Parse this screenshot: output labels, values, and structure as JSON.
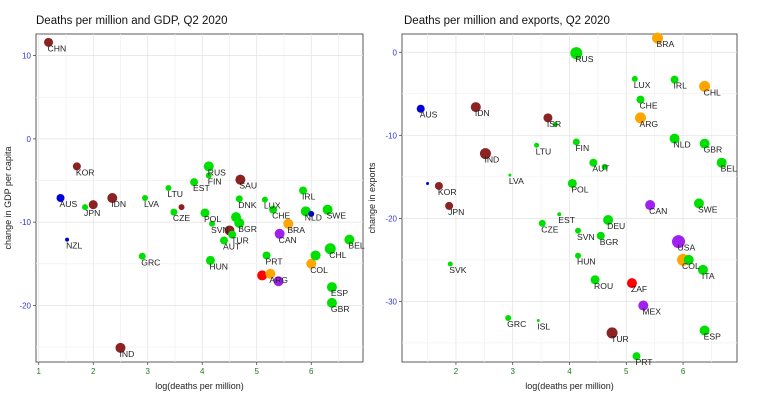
{
  "chart_data": [
    {
      "type": "scatter",
      "title": "Deaths per million and GDP, Q2 2020",
      "xlabel": "log(deaths per million)",
      "ylabel": "change in GDP per capita",
      "xlim": [
        0.95,
        6.95
      ],
      "ylim": [
        -26.8,
        12.6
      ],
      "x_ticks": [
        1,
        2,
        3,
        4,
        5,
        6
      ],
      "y_ticks": [
        10,
        0,
        -10,
        -20
      ],
      "grid": true,
      "colors": {
        "green": "#00e000",
        "darkred": "#8b2323",
        "blue": "#0000dd",
        "orange": "#ffa500",
        "red": "#ff0000",
        "purple": "#a020f0"
      },
      "points": [
        {
          "label": "CHN",
          "x": 1.18,
          "y": 11.6,
          "color": "darkred",
          "size": 4.5
        },
        {
          "label": "KOR",
          "x": 1.7,
          "y": -3.3,
          "color": "darkred",
          "size": 4
        },
        {
          "label": "AUS",
          "x": 1.4,
          "y": -7.1,
          "color": "blue",
          "size": 4
        },
        {
          "label": "JPN",
          "x": 1.85,
          "y": -8.2,
          "color": "green",
          "size": 3
        },
        {
          "label": "",
          "x": 2.0,
          "y": -7.9,
          "color": "darkred",
          "size": 4.5
        },
        {
          "label": "IDN",
          "x": 2.35,
          "y": -7.1,
          "color": "darkred",
          "size": 5
        },
        {
          "label": "LVA",
          "x": 2.95,
          "y": -7.1,
          "color": "green",
          "size": 3
        },
        {
          "label": "NZL",
          "x": 1.52,
          "y": -12.1,
          "color": "blue",
          "size": 2
        },
        {
          "label": "GRC",
          "x": 2.9,
          "y": -14.1,
          "color": "green",
          "size": 3.5
        },
        {
          "label": "IND",
          "x": 2.5,
          "y": -25.1,
          "color": "darkred",
          "size": 5
        },
        {
          "label": "LTU",
          "x": 3.38,
          "y": -5.9,
          "color": "green",
          "size": 3
        },
        {
          "label": "CZE",
          "x": 3.48,
          "y": -8.8,
          "color": "green",
          "size": 3.5
        },
        {
          "label": "",
          "x": 3.62,
          "y": -8.2,
          "color": "darkred",
          "size": 3
        },
        {
          "label": "EST",
          "x": 3.85,
          "y": -5.2,
          "color": "green",
          "size": 4
        },
        {
          "label": "RUS",
          "x": 4.12,
          "y": -3.3,
          "color": "green",
          "size": 5
        },
        {
          "label": "FIN",
          "x": 4.12,
          "y": -4.4,
          "color": "green",
          "size": 3
        },
        {
          "label": "POL",
          "x": 4.05,
          "y": -8.9,
          "color": "green",
          "size": 4.5
        },
        {
          "label": "HUN",
          "x": 4.15,
          "y": -14.6,
          "color": "green",
          "size": 4.5
        },
        {
          "label": "SVN",
          "x": 4.18,
          "y": -10.2,
          "color": "green",
          "size": 3
        },
        {
          "label": "",
          "x": 4.5,
          "y": -11.0,
          "color": "darkred",
          "size": 5
        },
        {
          "label": "BGR",
          "x": 4.68,
          "y": -10.1,
          "color": "green",
          "size": 5
        },
        {
          "label": "",
          "x": 4.62,
          "y": -9.4,
          "color": "green",
          "size": 5
        },
        {
          "label": "TUR",
          "x": 4.55,
          "y": -11.5,
          "color": "green",
          "size": 4
        },
        {
          "label": "AUT",
          "x": 4.4,
          "y": -12.2,
          "color": "green",
          "size": 4
        },
        {
          "label": "DNK",
          "x": 4.68,
          "y": -7.2,
          "color": "green",
          "size": 3.5
        },
        {
          "label": "SAU",
          "x": 4.7,
          "y": -4.9,
          "color": "darkred",
          "size": 5
        },
        {
          "label": "LUX",
          "x": 5.15,
          "y": -7.3,
          "color": "green",
          "size": 3
        },
        {
          "label": "CHE",
          "x": 5.3,
          "y": -8.5,
          "color": "green",
          "size": 4
        },
        {
          "label": "CAN",
          "x": 5.42,
          "y": -11.4,
          "color": "purple",
          "size": 5
        },
        {
          "label": "BRA",
          "x": 5.58,
          "y": -10.2,
          "color": "orange",
          "size": 5
        },
        {
          "label": "NLD",
          "x": 5.9,
          "y": -8.7,
          "color": "green",
          "size": 5
        },
        {
          "label": "",
          "x": 6.0,
          "y": -9.0,
          "color": "blue",
          "size": 3
        },
        {
          "label": "IRL",
          "x": 5.85,
          "y": -6.2,
          "color": "green",
          "size": 4
        },
        {
          "label": "SWE",
          "x": 6.3,
          "y": -8.5,
          "color": "green",
          "size": 5
        },
        {
          "label": "PRT",
          "x": 5.18,
          "y": -14.0,
          "color": "green",
          "size": 4
        },
        {
          "label": "",
          "x": 5.1,
          "y": -16.4,
          "color": "red",
          "size": 5
        },
        {
          "label": "ARG",
          "x": 5.25,
          "y": -16.2,
          "color": "orange",
          "size": 5
        },
        {
          "label": "",
          "x": 5.4,
          "y": -17.1,
          "color": "purple",
          "size": 5
        },
        {
          "label": "COL",
          "x": 6.0,
          "y": -15.0,
          "color": "orange",
          "size": 5
        },
        {
          "label": "",
          "x": 6.08,
          "y": -14.0,
          "color": "green",
          "size": 5
        },
        {
          "label": "CHL",
          "x": 6.35,
          "y": -13.2,
          "color": "green",
          "size": 5.5
        },
        {
          "label": "BEL",
          "x": 6.7,
          "y": -12.1,
          "color": "green",
          "size": 5
        },
        {
          "label": "ESP",
          "x": 6.38,
          "y": -17.8,
          "color": "green",
          "size": 5
        },
        {
          "label": "GBR",
          "x": 6.38,
          "y": -19.7,
          "color": "green",
          "size": 5
        }
      ]
    },
    {
      "type": "scatter",
      "title": "Deaths per million and exports, Q2 2020",
      "xlabel": "log(deaths per million)",
      "ylabel": "change in exports",
      "xlim": [
        1.05,
        6.95
      ],
      "ylim": [
        -37.3,
        2.2
      ],
      "x_ticks": [
        2,
        3,
        4,
        5,
        6
      ],
      "y_ticks": [
        0,
        -10,
        -20,
        -30
      ],
      "grid": true,
      "colors": {
        "green": "#00e000",
        "darkred": "#8b2323",
        "blue": "#0000dd",
        "orange": "#ffa500",
        "red": "#ff0000",
        "purple": "#a020f0"
      },
      "points": [
        {
          "label": "AUS",
          "x": 1.38,
          "y": -6.8,
          "color": "blue",
          "size": 4
        },
        {
          "label": "",
          "x": 1.5,
          "y": -15.8,
          "color": "blue",
          "size": 1.5
        },
        {
          "label": "KOR",
          "x": 1.7,
          "y": -16.1,
          "color": "darkred",
          "size": 4
        },
        {
          "label": "JPN",
          "x": 1.88,
          "y": -18.5,
          "color": "darkred",
          "size": 4
        },
        {
          "label": "SVK",
          "x": 1.9,
          "y": -25.5,
          "color": "green",
          "size": 2.5
        },
        {
          "label": "IDN",
          "x": 2.35,
          "y": -6.6,
          "color": "darkred",
          "size": 5
        },
        {
          "label": "IND",
          "x": 2.52,
          "y": -12.2,
          "color": "darkred",
          "size": 5.5
        },
        {
          "label": "LVA",
          "x": 2.95,
          "y": -14.8,
          "color": "green",
          "size": 1.5
        },
        {
          "label": "LTU",
          "x": 3.42,
          "y": -11.2,
          "color": "green",
          "size": 2.5
        },
        {
          "label": "GRC",
          "x": 2.92,
          "y": -32.0,
          "color": "green",
          "size": 3
        },
        {
          "label": "ISL",
          "x": 3.45,
          "y": -32.3,
          "color": "green",
          "size": 1.5
        },
        {
          "label": "ISR",
          "x": 3.62,
          "y": -7.9,
          "color": "darkred",
          "size": 4.5
        },
        {
          "label": "",
          "x": 3.75,
          "y": -8.7,
          "color": "green",
          "size": 2.5
        },
        {
          "label": "CZE",
          "x": 3.52,
          "y": -20.6,
          "color": "green",
          "size": 3.5
        },
        {
          "label": "EST",
          "x": 3.82,
          "y": -19.5,
          "color": "green",
          "size": 2
        },
        {
          "label": "RUS",
          "x": 4.12,
          "y": -0.1,
          "color": "green",
          "size": 6
        },
        {
          "label": "FIN",
          "x": 4.12,
          "y": -10.8,
          "color": "green",
          "size": 3.5
        },
        {
          "label": "POL",
          "x": 4.05,
          "y": -15.8,
          "color": "green",
          "size": 4.5
        },
        {
          "label": "SVN",
          "x": 4.15,
          "y": -21.5,
          "color": "green",
          "size": 3
        },
        {
          "label": "HUN",
          "x": 4.15,
          "y": -24.5,
          "color": "green",
          "size": 3
        },
        {
          "label": "AUT",
          "x": 4.42,
          "y": -13.3,
          "color": "green",
          "size": 4
        },
        {
          "label": "",
          "x": 4.62,
          "y": -13.8,
          "color": "green",
          "size": 3
        },
        {
          "label": "BGR",
          "x": 4.55,
          "y": -22.1,
          "color": "green",
          "size": 4
        },
        {
          "label": "DEU",
          "x": 4.68,
          "y": -20.2,
          "color": "green",
          "size": 5
        },
        {
          "label": "ROU",
          "x": 4.45,
          "y": -27.4,
          "color": "green",
          "size": 4.5
        },
        {
          "label": "TUR",
          "x": 4.75,
          "y": -33.8,
          "color": "darkred",
          "size": 5.5
        },
        {
          "label": "ZAF",
          "x": 5.1,
          "y": -27.8,
          "color": "red",
          "size": 5
        },
        {
          "label": "MEX",
          "x": 5.3,
          "y": -30.5,
          "color": "purple",
          "size": 5
        },
        {
          "label": "PRT",
          "x": 5.18,
          "y": -36.6,
          "color": "green",
          "size": 4
        },
        {
          "label": "LUX",
          "x": 5.15,
          "y": -3.2,
          "color": "green",
          "size": 3
        },
        {
          "label": "CHE",
          "x": 5.25,
          "y": -5.7,
          "color": "green",
          "size": 4
        },
        {
          "label": "ARG",
          "x": 5.25,
          "y": -7.9,
          "color": "orange",
          "size": 5.5
        },
        {
          "label": "CAN",
          "x": 5.42,
          "y": -18.4,
          "color": "purple",
          "size": 5
        },
        {
          "label": "BRA",
          "x": 5.55,
          "y": 1.7,
          "color": "orange",
          "size": 5.5
        },
        {
          "label": "IRL",
          "x": 5.85,
          "y": -3.3,
          "color": "green",
          "size": 4
        },
        {
          "label": "NLD",
          "x": 5.85,
          "y": -10.4,
          "color": "green",
          "size": 5
        },
        {
          "label": "USA",
          "x": 5.92,
          "y": -22.8,
          "color": "purple",
          "size": 6.5
        },
        {
          "label": "COL",
          "x": 6.0,
          "y": -25.0,
          "color": "orange",
          "size": 6
        },
        {
          "label": "",
          "x": 6.1,
          "y": -25.0,
          "color": "green",
          "size": 5
        },
        {
          "label": "SWE",
          "x": 6.28,
          "y": -18.2,
          "color": "green",
          "size": 5
        },
        {
          "label": "CHL",
          "x": 6.38,
          "y": -4.1,
          "color": "orange",
          "size": 5.5
        },
        {
          "label": "GBR",
          "x": 6.38,
          "y": -11.0,
          "color": "green",
          "size": 5
        },
        {
          "label": "BEL",
          "x": 6.68,
          "y": -13.3,
          "color": "green",
          "size": 5
        },
        {
          "label": "ITA",
          "x": 6.35,
          "y": -26.2,
          "color": "green",
          "size": 5
        },
        {
          "label": "ESP",
          "x": 6.38,
          "y": -33.5,
          "color": "green",
          "size": 5
        }
      ]
    }
  ]
}
